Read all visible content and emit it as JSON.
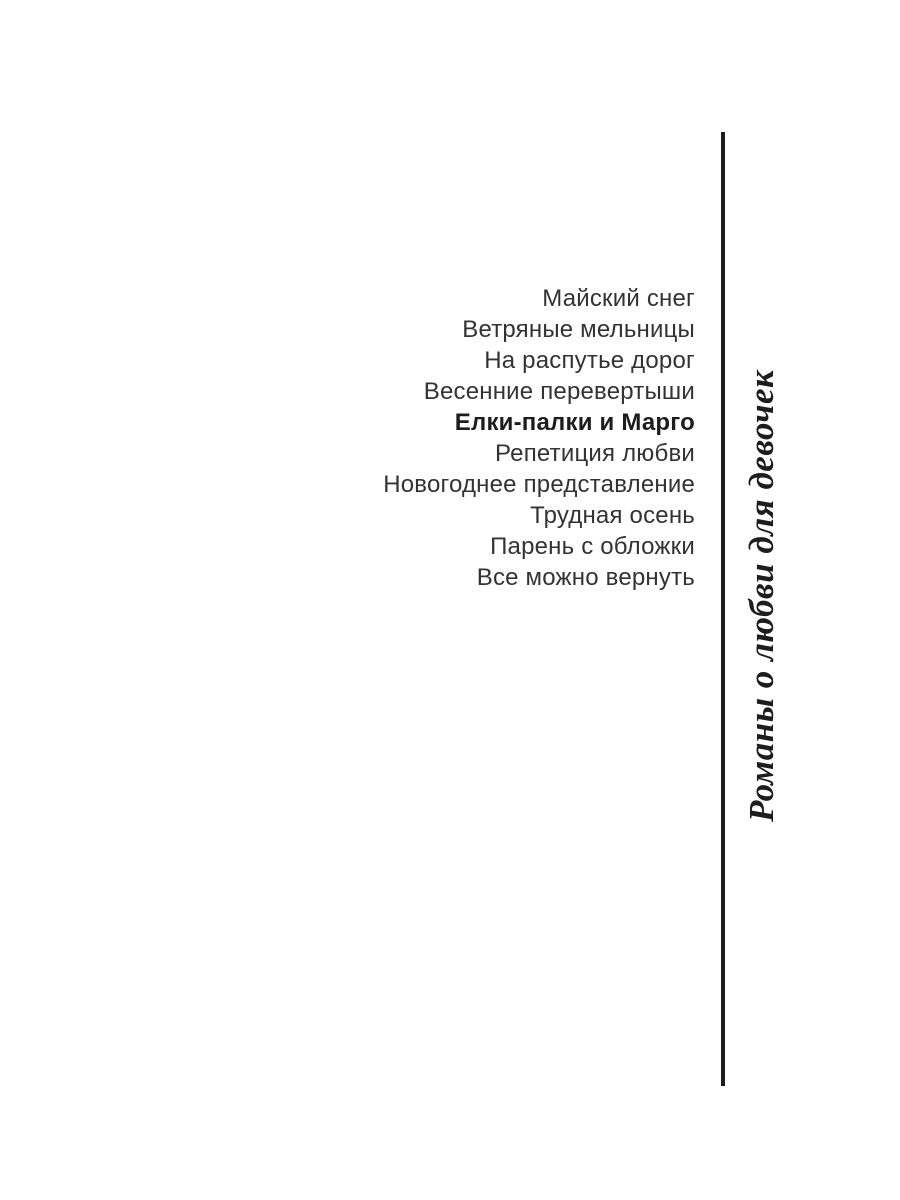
{
  "page": {
    "background_color": "#ffffff"
  },
  "book_list": {
    "items": [
      {
        "title": "Майский снег",
        "bold": false
      },
      {
        "title": "Ветряные мельницы",
        "bold": false
      },
      {
        "title": "На распутье дорог",
        "bold": false
      },
      {
        "title": "Весенние перевертыши",
        "bold": false
      },
      {
        "title": "Елки-палки и Марго",
        "bold": true
      },
      {
        "title": "Репетиция любви",
        "bold": false
      },
      {
        "title": "Новогоднее представление",
        "bold": false
      },
      {
        "title": "Трудная осень",
        "bold": false
      },
      {
        "title": "Парень с обложки",
        "bold": false
      },
      {
        "title": "Все можно вернуть",
        "bold": false
      }
    ]
  },
  "series": {
    "label": "Романы о любви для девочек"
  },
  "colors": {
    "list_text": "#333333",
    "emphasis_text": "#1d1d1d",
    "rule": "#1d1d1d",
    "series_text": "#1d1d1d"
  }
}
